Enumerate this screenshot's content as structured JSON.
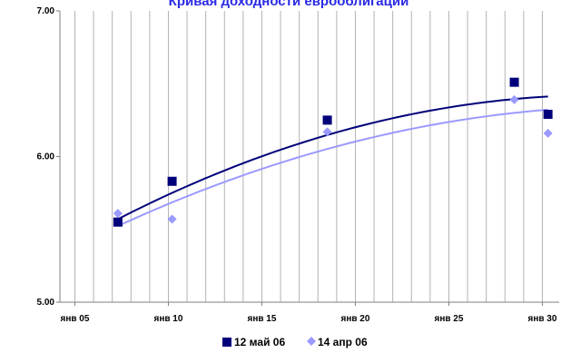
{
  "chart_data": {
    "type": "scatter",
    "title": "Кривая доходности еврооблигаций",
    "xlabel": "",
    "ylabel": "",
    "x_tick_labels": [
      "янв 05",
      "янв 10",
      "янв 15",
      "янв 20",
      "янв 25",
      "янв 30"
    ],
    "x_tick_values": [
      2005,
      2010,
      2015,
      2020,
      2025,
      2030
    ],
    "xlim": [
      2004.2,
      2030.9
    ],
    "y_tick_labels": [
      "5.00",
      "6.00",
      "7.00"
    ],
    "y_tick_values": [
      5.0,
      6.0,
      7.0
    ],
    "ylim": [
      5.0,
      7.0
    ],
    "grid": "vertical",
    "legend_position": "bottom",
    "series": [
      {
        "name": "12 май 06",
        "color": "#00007a",
        "marker": "square",
        "x": [
          2007.3,
          2010.2,
          2018.5,
          2028.5,
          2030.3
        ],
        "y": [
          5.55,
          5.83,
          6.25,
          6.51,
          6.29
        ],
        "trend_color": "#00007a",
        "trend_poly": [
          5.5702,
          0.065776,
          -0.0012682
        ]
      },
      {
        "name": "14 апр 06",
        "color": "#9a9aff",
        "marker": "diamond",
        "x": [
          2007.3,
          2010.2,
          2018.5,
          2028.5,
          2030.3
        ],
        "y": [
          5.61,
          5.57,
          6.17,
          6.39,
          6.16
        ],
        "trend_color": "#9a9aff",
        "trend_poly": [
          5.5227,
          0.059144,
          -0.001061
        ]
      }
    ]
  }
}
